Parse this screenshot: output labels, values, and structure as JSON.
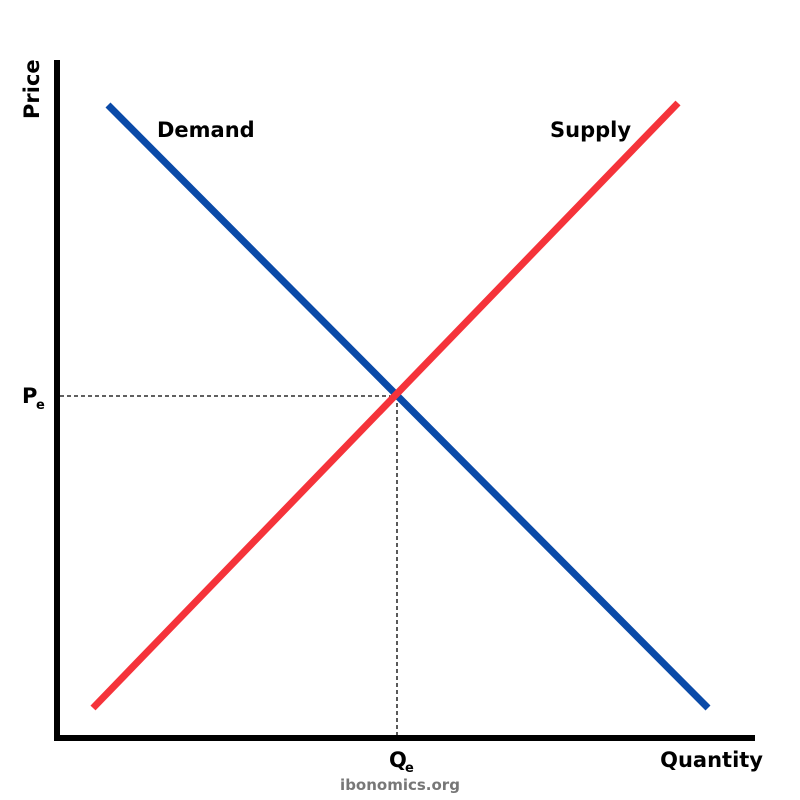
{
  "axes": {
    "y_label": "Price",
    "x_label": "Quantity"
  },
  "curves": {
    "demand": "Demand",
    "supply": "Supply"
  },
  "equilibrium": {
    "price": {
      "label": "P",
      "subscript": "e"
    },
    "quantity": {
      "label": "Q",
      "subscript": "e"
    }
  },
  "watermark": "ibonomics.org"
}
